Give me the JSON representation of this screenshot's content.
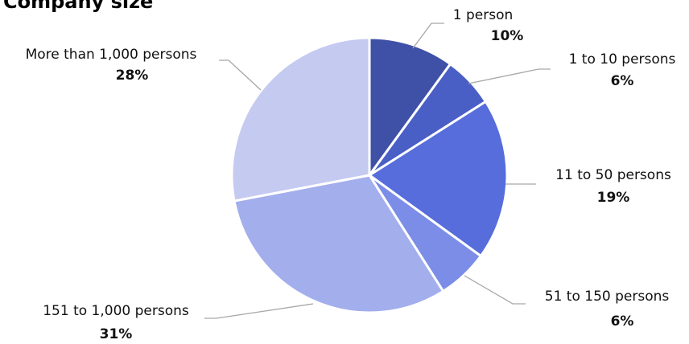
{
  "title": "Company size",
  "chart_data": {
    "type": "pie",
    "title": "Company size",
    "slices": [
      {
        "label": "1 person",
        "value_label": "10%",
        "value": 10,
        "color": "#3f51a6"
      },
      {
        "label": "1 to 10 persons",
        "value_label": "6%",
        "value": 6,
        "color": "#4a5fc5"
      },
      {
        "label": "11 to 50 persons",
        "value_label": "19%",
        "value": 19,
        "color": "#566ddb"
      },
      {
        "label": "51 to 150 persons",
        "value_label": "6%",
        "value": 6,
        "color": "#7b8de6"
      },
      {
        "label": "151 to 1,000 persons",
        "value_label": "31%",
        "value": 31,
        "color": "#a3aeec"
      },
      {
        "label": "More than 1,000 persons",
        "value_label": "28%",
        "value": 28,
        "color": "#c5caf1"
      }
    ],
    "start_direction": "12 o'clock, clockwise",
    "legend": "none (labels beside slices with leader lines)"
  }
}
